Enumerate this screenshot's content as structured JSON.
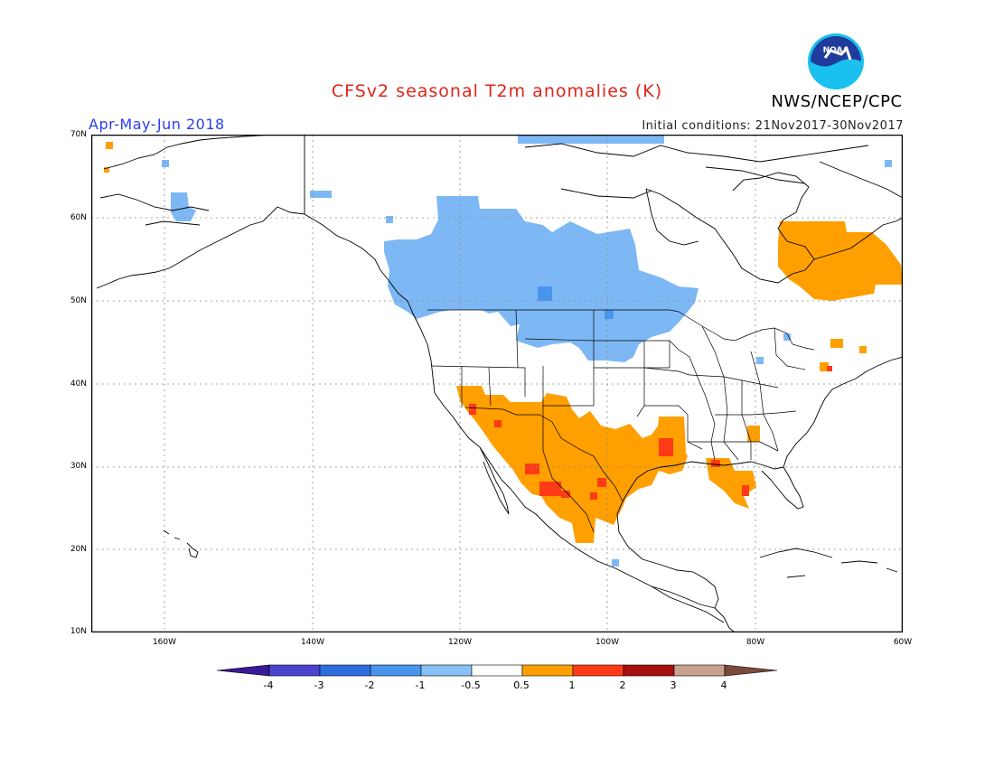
{
  "title": "CFSv2 seasonal T2m anomalies (K)",
  "agency": "NWS/NCEP/CPC",
  "period": "Apr-May-Jun 2018",
  "initial_conditions": "Initial conditions: 21Nov2017-30Nov2017",
  "logo_text": "NOAA",
  "colors": {
    "title": "#e0251b",
    "period": "#2a3df0",
    "warm_light": "#ff9f00",
    "warm_strong": "#ff3a17",
    "cool_light": "#7db8f5",
    "cool_strong": "#4a90ee",
    "land_outline": "#000000"
  },
  "map": {
    "region": "North America",
    "projection": "lat-lon",
    "lon_range": [
      -170,
      -60
    ],
    "lat_range": [
      10,
      70
    ],
    "lat_ticks": [
      "70N",
      "60N",
      "50N",
      "40N",
      "30N",
      "20N",
      "10N"
    ],
    "lon_ticks": [
      "160W",
      "140W",
      "120W",
      "100W",
      "80W",
      "60W"
    ],
    "grid": "dotted",
    "anomaly_regions": [
      {
        "name": "Western/Central Canada and northern plains",
        "category": "-1 to -0.5"
      },
      {
        "name": "Northern Quebec / Labrador",
        "category": "0.5 to 1"
      },
      {
        "name": "US Southwest, Texas and northern Mexico",
        "category": "0.5 to 1"
      },
      {
        "name": "Scattered Arizona, Chihuahua, Louisiana, Florida panhandle",
        "category": "1 to 2"
      },
      {
        "name": "Florida peninsula / Gulf coast",
        "category": "0.5 to 1"
      }
    ]
  },
  "colorbar": {
    "labels": [
      "-4",
      "-3",
      "-2",
      "-1",
      "-0.5",
      "0.5",
      "1",
      "2",
      "3",
      "4"
    ],
    "colors": [
      "#3a1a96",
      "#4a44cf",
      "#2d6ee0",
      "#4a94ee",
      "#87c1f6",
      "#ffffff",
      "#ff9f00",
      "#ff3a17",
      "#a80f0f",
      "#c8a08e",
      "#7a4a3a"
    ]
  }
}
